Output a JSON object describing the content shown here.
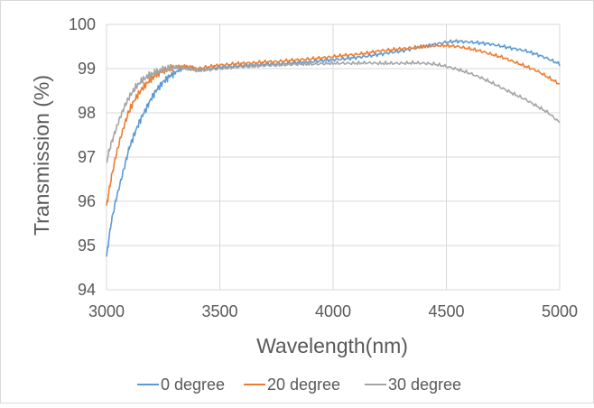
{
  "chart_data": {
    "type": "line",
    "xlabel": "Wavelength(nm)",
    "ylabel": "Transmission (%)",
    "xlim": [
      3000,
      5000
    ],
    "ylim": [
      94,
      100
    ],
    "xticks": [
      "3000",
      "3500",
      "4000",
      "4500",
      "5000"
    ],
    "yticks": [
      "94",
      "95",
      "96",
      "97",
      "98",
      "99",
      "100"
    ],
    "grid": "both",
    "legend_position": "bottom",
    "series": [
      {
        "name": "0 degree",
        "color": "#5b9bd5",
        "x": [
          3000,
          3020,
          3040,
          3060,
          3080,
          3100,
          3125,
          3150,
          3175,
          3200,
          3225,
          3250,
          3275,
          3300,
          3325,
          3350,
          3375,
          3400,
          3450,
          3500,
          3550,
          3600,
          3650,
          3700,
          3750,
          3800,
          3850,
          3900,
          3950,
          4000,
          4050,
          4100,
          4150,
          4200,
          4250,
          4300,
          4350,
          4400,
          4450,
          4500,
          4550,
          4600,
          4650,
          4700,
          4750,
          4800,
          4850,
          4900,
          4950,
          5000
        ],
        "y": [
          94.75,
          95.5,
          96.0,
          96.4,
          96.8,
          97.2,
          97.55,
          97.85,
          98.1,
          98.35,
          98.55,
          98.7,
          98.82,
          98.9,
          98.98,
          99.02,
          99.03,
          98.98,
          99.0,
          99.03,
          99.05,
          99.07,
          99.08,
          99.1,
          99.1,
          99.12,
          99.14,
          99.15,
          99.18,
          99.2,
          99.22,
          99.25,
          99.28,
          99.32,
          99.36,
          99.4,
          99.45,
          99.5,
          99.55,
          99.6,
          99.62,
          99.6,
          99.58,
          99.55,
          99.5,
          99.45,
          99.4,
          99.32,
          99.22,
          99.1
        ]
      },
      {
        "name": "20 degree",
        "color": "#ed7d31",
        "x": [
          3000,
          3020,
          3040,
          3060,
          3080,
          3100,
          3125,
          3150,
          3175,
          3200,
          3225,
          3250,
          3275,
          3300,
          3325,
          3350,
          3375,
          3400,
          3450,
          3500,
          3550,
          3600,
          3650,
          3700,
          3750,
          3800,
          3850,
          3900,
          3950,
          4000,
          4050,
          4100,
          4150,
          4200,
          4250,
          4300,
          4350,
          4400,
          4450,
          4500,
          4550,
          4600,
          4650,
          4700,
          4750,
          4800,
          4850,
          4900,
          4950,
          5000
        ],
        "y": [
          95.9,
          96.5,
          97.0,
          97.4,
          97.75,
          98.05,
          98.3,
          98.5,
          98.65,
          98.78,
          98.88,
          98.95,
          99.0,
          99.03,
          99.05,
          99.05,
          99.03,
          99.0,
          99.04,
          99.08,
          99.1,
          99.12,
          99.13,
          99.15,
          99.16,
          99.18,
          99.2,
          99.22,
          99.24,
          99.27,
          99.3,
          99.32,
          99.35,
          99.4,
          99.42,
          99.45,
          99.47,
          99.5,
          99.52,
          99.52,
          99.5,
          99.45,
          99.4,
          99.32,
          99.25,
          99.15,
          99.05,
          98.95,
          98.8,
          98.65
        ]
      },
      {
        "name": "30 degree",
        "color": "#a5a5a5",
        "x": [
          3000,
          3020,
          3040,
          3060,
          3080,
          3100,
          3125,
          3150,
          3175,
          3200,
          3225,
          3250,
          3275,
          3300,
          3325,
          3350,
          3375,
          3400,
          3450,
          3500,
          3550,
          3600,
          3650,
          3700,
          3750,
          3800,
          3850,
          3900,
          3950,
          4000,
          4050,
          4100,
          4150,
          4200,
          4250,
          4300,
          4350,
          4400,
          4450,
          4500,
          4550,
          4600,
          4650,
          4700,
          4750,
          4800,
          4850,
          4900,
          4950,
          5000
        ],
        "y": [
          96.9,
          97.3,
          97.6,
          97.9,
          98.15,
          98.35,
          98.55,
          98.7,
          98.8,
          98.88,
          98.93,
          98.97,
          99.0,
          99.02,
          99.02,
          99.0,
          98.98,
          98.95,
          98.97,
          99.0,
          99.02,
          99.04,
          99.05,
          99.07,
          99.08,
          99.09,
          99.1,
          99.1,
          99.11,
          99.12,
          99.12,
          99.12,
          99.13,
          99.12,
          99.12,
          99.12,
          99.13,
          99.12,
          99.1,
          99.05,
          98.98,
          98.9,
          98.8,
          98.68,
          98.55,
          98.42,
          98.3,
          98.15,
          98.0,
          97.78
        ]
      }
    ]
  }
}
